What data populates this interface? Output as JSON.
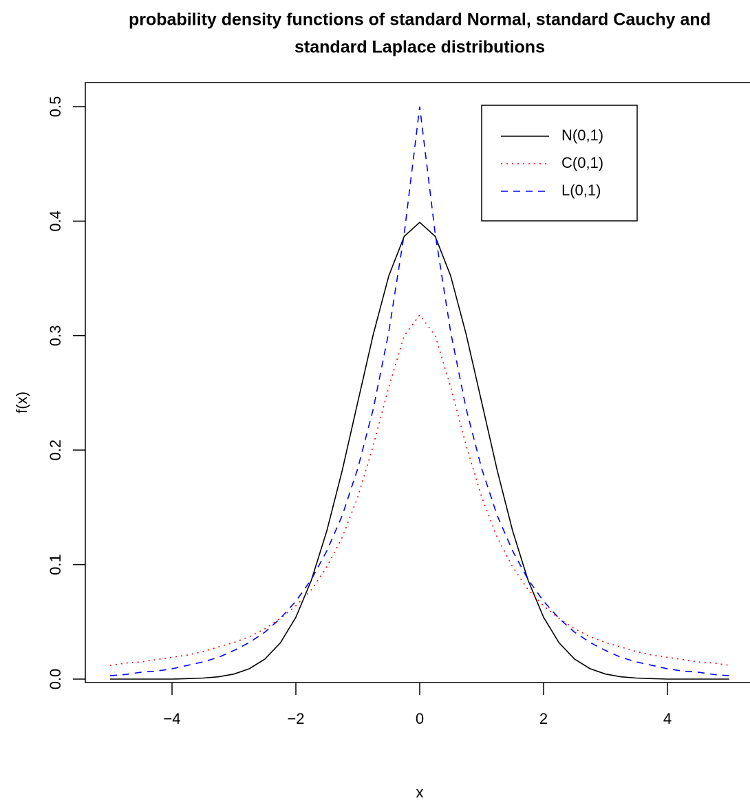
{
  "chart_data": {
    "type": "line",
    "title_lines": [
      "probability density functions of standard Normal, standard Cauchy and",
      "standard Laplace distributions"
    ],
    "x_label": "x",
    "y_label": "f(x)",
    "x": [
      -5,
      -4.75,
      -4.5,
      -4.25,
      -4,
      -3.75,
      -3.5,
      -3.25,
      -3,
      -2.75,
      -2.5,
      -2.25,
      -2,
      -1.75,
      -1.5,
      -1.25,
      -1,
      -0.75,
      -0.5,
      -0.25,
      0,
      0.25,
      0.5,
      0.75,
      1,
      1.25,
      1.5,
      1.75,
      2,
      2.25,
      2.5,
      2.75,
      3,
      3.25,
      3.5,
      3.75,
      4,
      4.25,
      4.5,
      4.75,
      5
    ],
    "series": [
      {
        "name": "N(0,1)",
        "color": "#000000",
        "linestyle": "solid",
        "values": [
          0,
          0,
          0,
          0,
          0,
          0.0004,
          0.0009,
          0.002,
          0.0044,
          0.0091,
          0.0175,
          0.0317,
          0.054,
          0.0863,
          0.1295,
          0.1826,
          0.242,
          0.3011,
          0.3521,
          0.3867,
          0.3989,
          0.3867,
          0.3521,
          0.3011,
          0.242,
          0.1826,
          0.1295,
          0.0863,
          0.054,
          0.0317,
          0.0175,
          0.0091,
          0.0044,
          0.002,
          0.0009,
          0.0004,
          0,
          0,
          0,
          0,
          0
        ]
      },
      {
        "name": "C(0,1)",
        "color": "#ff0000",
        "linestyle": "dotted",
        "values": [
          0.012,
          0.014,
          0.015,
          0.017,
          0.019,
          0.021,
          0.024,
          0.028,
          0.032,
          0.037,
          0.044,
          0.053,
          0.064,
          0.078,
          0.098,
          0.124,
          0.159,
          0.204,
          0.255,
          0.3,
          0.318,
          0.3,
          0.255,
          0.204,
          0.159,
          0.124,
          0.098,
          0.078,
          0.064,
          0.053,
          0.044,
          0.037,
          0.032,
          0.028,
          0.024,
          0.021,
          0.019,
          0.017,
          0.015,
          0.014,
          0.012
        ]
      },
      {
        "name": "L(0,1)",
        "color": "#0000ff",
        "linestyle": "dashed",
        "values": [
          0.003,
          0.004,
          0.006,
          0.007,
          0.009,
          0.012,
          0.015,
          0.019,
          0.025,
          0.032,
          0.041,
          0.053,
          0.068,
          0.087,
          0.112,
          0.143,
          0.184,
          0.236,
          0.303,
          0.389,
          0.5,
          0.389,
          0.303,
          0.236,
          0.184,
          0.143,
          0.112,
          0.087,
          0.068,
          0.053,
          0.041,
          0.032,
          0.025,
          0.019,
          0.015,
          0.012,
          0.009,
          0.007,
          0.006,
          0.004,
          0.003
        ]
      }
    ],
    "xlim": [
      -5.4,
      5.4
    ],
    "ylim": [
      -0.003,
      0.521
    ],
    "xticks": [
      {
        "value": -4,
        "label": "−4"
      },
      {
        "value": -2,
        "label": "−2"
      },
      0,
      2,
      4
    ],
    "yticks": [
      {
        "value": 0,
        "label": "0.0"
      },
      0.1,
      0.2,
      0.3,
      0.4,
      0.5
    ],
    "grid": false,
    "legend": "top-right"
  }
}
